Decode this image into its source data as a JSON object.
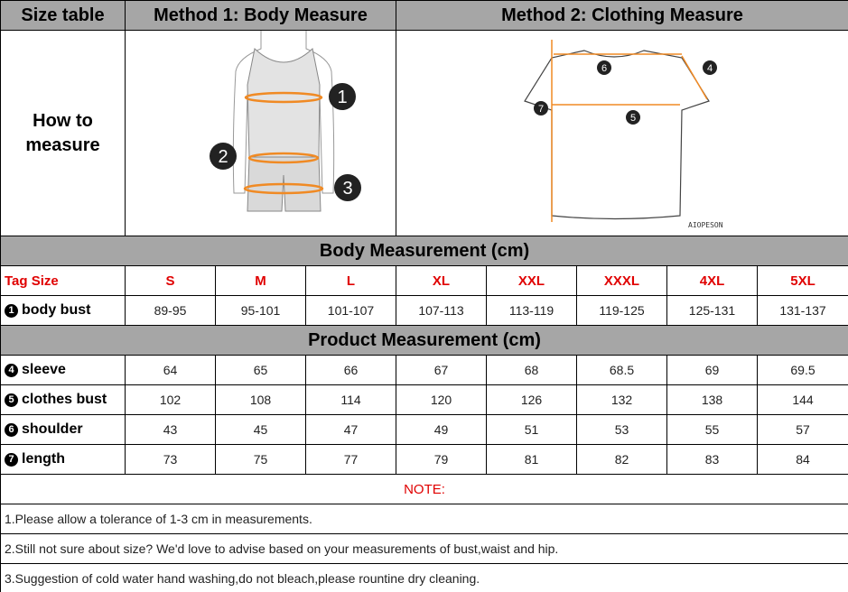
{
  "header": {
    "size_table": "Size table",
    "method1": "Method 1: Body  Measure",
    "method2": "Method 2: Clothing Measure"
  },
  "how_to_measure": "How to measure",
  "diagram": {
    "body_markers": [
      "1",
      "2",
      "3"
    ],
    "clothing_markers": [
      "4",
      "5",
      "6",
      "7"
    ],
    "brand": "AIOPESON",
    "accent": "#f08a24"
  },
  "body_section": "Body Measurement (cm)",
  "product_section": "Product Measurement (cm)",
  "tag_label": "Tag Size",
  "sizes": [
    "S",
    "M",
    "L",
    "XL",
    "XXL",
    "XXXL",
    "4XL",
    "5XL"
  ],
  "body_rows": [
    {
      "num": "1",
      "label": "body bust",
      "values": [
        "89-95",
        "95-101",
        "101-107",
        "107-113",
        "113-119",
        "119-125",
        "125-131",
        "131-137"
      ]
    }
  ],
  "product_rows": [
    {
      "num": "4",
      "label": "sleeve",
      "values": [
        "64",
        "65",
        "66",
        "67",
        "68",
        "68.5",
        "69",
        "69.5"
      ]
    },
    {
      "num": "5",
      "label": "clothes bust",
      "values": [
        "102",
        "108",
        "114",
        "120",
        "126",
        "132",
        "138",
        "144"
      ]
    },
    {
      "num": "6",
      "label": "shoulder",
      "values": [
        "43",
        "45",
        "47",
        "49",
        "51",
        "53",
        "55",
        "57"
      ]
    },
    {
      "num": "7",
      "label": "length",
      "values": [
        "73",
        "75",
        "77",
        "79",
        "81",
        "82",
        "83",
        "84"
      ]
    }
  ],
  "note_title": "NOTE:",
  "notes": [
    "1.Please allow a tolerance of 1-3 cm in measurements.",
    "2.Still not sure about size? We'd love to advise based on your measurements of bust,waist and hip.",
    "3.Suggestion of cold water hand washing,do not bleach,please rountine dry cleaning."
  ]
}
